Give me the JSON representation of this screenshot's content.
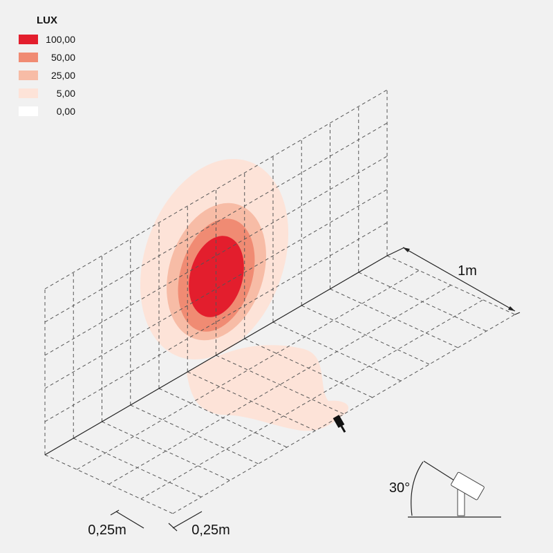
{
  "legend": {
    "title": "LUX",
    "items": [
      {
        "label": "100,00",
        "color": "#e31e2d"
      },
      {
        "label": "50,00",
        "color": "#f08b73"
      },
      {
        "label": "25,00",
        "color": "#f7bca6"
      },
      {
        "label": "5,00",
        "color": "#fde3d8"
      },
      {
        "label": "0,00",
        "color": "#ffffff"
      }
    ]
  },
  "dimensions": {
    "depth": "1m",
    "floor_width": "0,25m",
    "floor_depth": "0,25m",
    "tilt_angle": "30°"
  }
}
